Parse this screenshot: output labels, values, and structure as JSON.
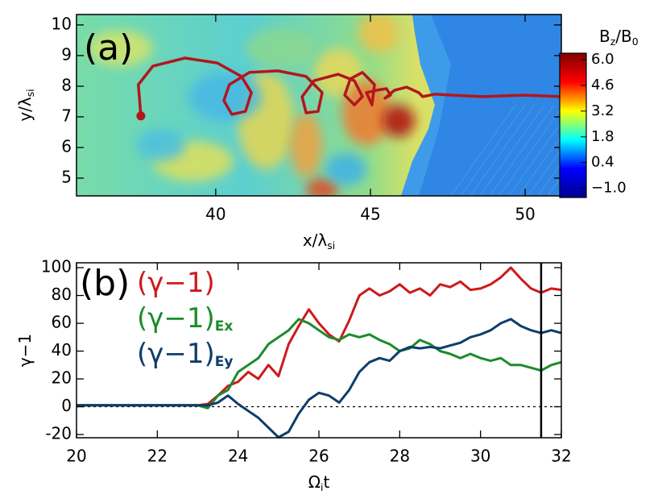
{
  "chart_data": [
    {
      "type": "heatmap",
      "panel_label": "(a)",
      "xlabel": [
        {
          "text": "x/λ"
        },
        {
          "sub": "si"
        }
      ],
      "ylabel": [
        {
          "text": "y/λ"
        },
        {
          "sub": "si"
        }
      ],
      "xlim": [
        35.5,
        51.17
      ],
      "ylim": [
        4.42,
        10.34
      ],
      "xticks": [
        40,
        45,
        50
      ],
      "yticks": [
        5,
        6,
        7,
        8,
        9,
        10
      ],
      "colorbar_label": [
        {
          "text": "B"
        },
        {
          "sub": "z"
        },
        {
          "text": "/B"
        },
        {
          "sub": "0"
        }
      ],
      "colormap": [
        "#00008f",
        "#0000ff",
        "#00ffff",
        "#ffff00",
        "#ff0000",
        "#800000"
      ],
      "clim": [
        -1.5,
        6.35
      ],
      "cticks": [
        {
          "value": 6.0,
          "label": "6.0"
        },
        {
          "value": 4.6,
          "label": "4.6"
        },
        {
          "value": 3.2,
          "label": "3.2"
        },
        {
          "value": 1.8,
          "label": "1.8"
        },
        {
          "value": 0.4,
          "label": "0.4"
        },
        {
          "value": -1.0,
          "label": "−1.0"
        }
      ],
      "start_marker": true,
      "series": [
        {
          "color": "#b3161c",
          "x": [
            37.58,
            37.5,
            37.97,
            39.01,
            40.05,
            40.83,
            41.15,
            40.96,
            40.52,
            40.26,
            40.44,
            41.09,
            42.01,
            42.92,
            43.44,
            43.31,
            42.92,
            42.79,
            43.18,
            43.96,
            44.48,
            44.74,
            44.48,
            44.17,
            44.35,
            44.74,
            45.13,
            45.05,
            44.87,
            45.21,
            45.52,
            45.65,
            45.47,
            45.78,
            46.17,
            46.56,
            46.69,
            47.08,
            47.6,
            48.65,
            49.95,
            51.17
          ],
          "y": [
            7.03,
            8.05,
            8.66,
            8.92,
            8.76,
            8.32,
            7.79,
            7.18,
            7.08,
            7.53,
            8.05,
            8.45,
            8.5,
            8.32,
            7.79,
            7.18,
            7.13,
            7.66,
            8.18,
            8.39,
            8.18,
            7.66,
            7.39,
            7.71,
            8.24,
            8.45,
            8.05,
            7.39,
            7.79,
            7.87,
            7.92,
            7.71,
            7.61,
            7.87,
            7.97,
            7.79,
            7.66,
            7.74,
            7.71,
            7.66,
            7.71,
            7.66
          ]
        }
      ]
    },
    {
      "type": "line",
      "panel_label": "(b)",
      "xlabel": [
        {
          "text": "Ω"
        },
        {
          "sub": "i"
        },
        {
          "text": "t"
        }
      ],
      "ylabel": [
        {
          "text": "γ−1"
        }
      ],
      "xlim": [
        20,
        32
      ],
      "ylim": [
        -22.3,
        103.5
      ],
      "xticks": [
        20,
        22,
        24,
        26,
        28,
        30,
        32
      ],
      "yticks": [
        -20,
        0,
        20,
        40,
        60,
        80,
        100
      ],
      "hline": 0,
      "vline": 31.5,
      "x": [
        20,
        20.25,
        20.5,
        20.75,
        21,
        21.25,
        21.5,
        21.75,
        22,
        22.25,
        22.5,
        22.75,
        23,
        23.25,
        23.5,
        23.75,
        24,
        24.25,
        24.5,
        24.75,
        25,
        25.25,
        25.5,
        25.75,
        26,
        26.25,
        26.5,
        26.75,
        27,
        27.25,
        27.5,
        27.75,
        28,
        28.25,
        28.5,
        28.75,
        29,
        29.25,
        29.5,
        29.75,
        30,
        30.25,
        30.5,
        30.75,
        31,
        31.25,
        31.5,
        31.75,
        32
      ],
      "series": [
        {
          "name": "(γ−1)",
          "color": "#cc1a1a",
          "values": [
            1,
            1,
            1,
            1,
            1,
            1,
            1,
            1,
            1,
            1,
            1,
            1,
            1,
            2,
            8,
            15,
            18,
            25,
            20,
            30,
            22,
            45,
            58,
            70,
            60,
            52,
            47,
            62,
            80,
            85,
            80,
            83,
            88,
            82,
            85,
            80,
            88,
            86,
            90,
            84,
            85,
            88,
            93,
            100,
            92,
            85,
            82,
            85,
            84
          ]
        },
        {
          "name": "(γ−1)",
          "name_sub": "Ex",
          "color": "#1a8c2a",
          "values": [
            1,
            1,
            1,
            1,
            1,
            1,
            1,
            1,
            1,
            1,
            1,
            1,
            1,
            -1,
            8,
            12,
            25,
            30,
            35,
            45,
            50,
            55,
            63,
            60,
            55,
            50,
            48,
            52,
            50,
            52,
            48,
            45,
            40,
            42,
            48,
            45,
            40,
            38,
            35,
            38,
            35,
            33,
            35,
            30,
            30,
            28,
            26,
            30,
            32
          ]
        },
        {
          "name": "(γ−1)",
          "name_sub": "Ey",
          "color": "#0d3d6b",
          "values": [
            1,
            1,
            1,
            1,
            1,
            1,
            1,
            1,
            1,
            1,
            1,
            1,
            1,
            1,
            3,
            8,
            2,
            -3,
            -8,
            -15,
            -22,
            -18,
            -5,
            5,
            10,
            8,
            3,
            12,
            25,
            32,
            35,
            33,
            40,
            43,
            42,
            43,
            42,
            44,
            46,
            50,
            52,
            55,
            60,
            63,
            58,
            55,
            53,
            55,
            53
          ]
        }
      ]
    }
  ]
}
